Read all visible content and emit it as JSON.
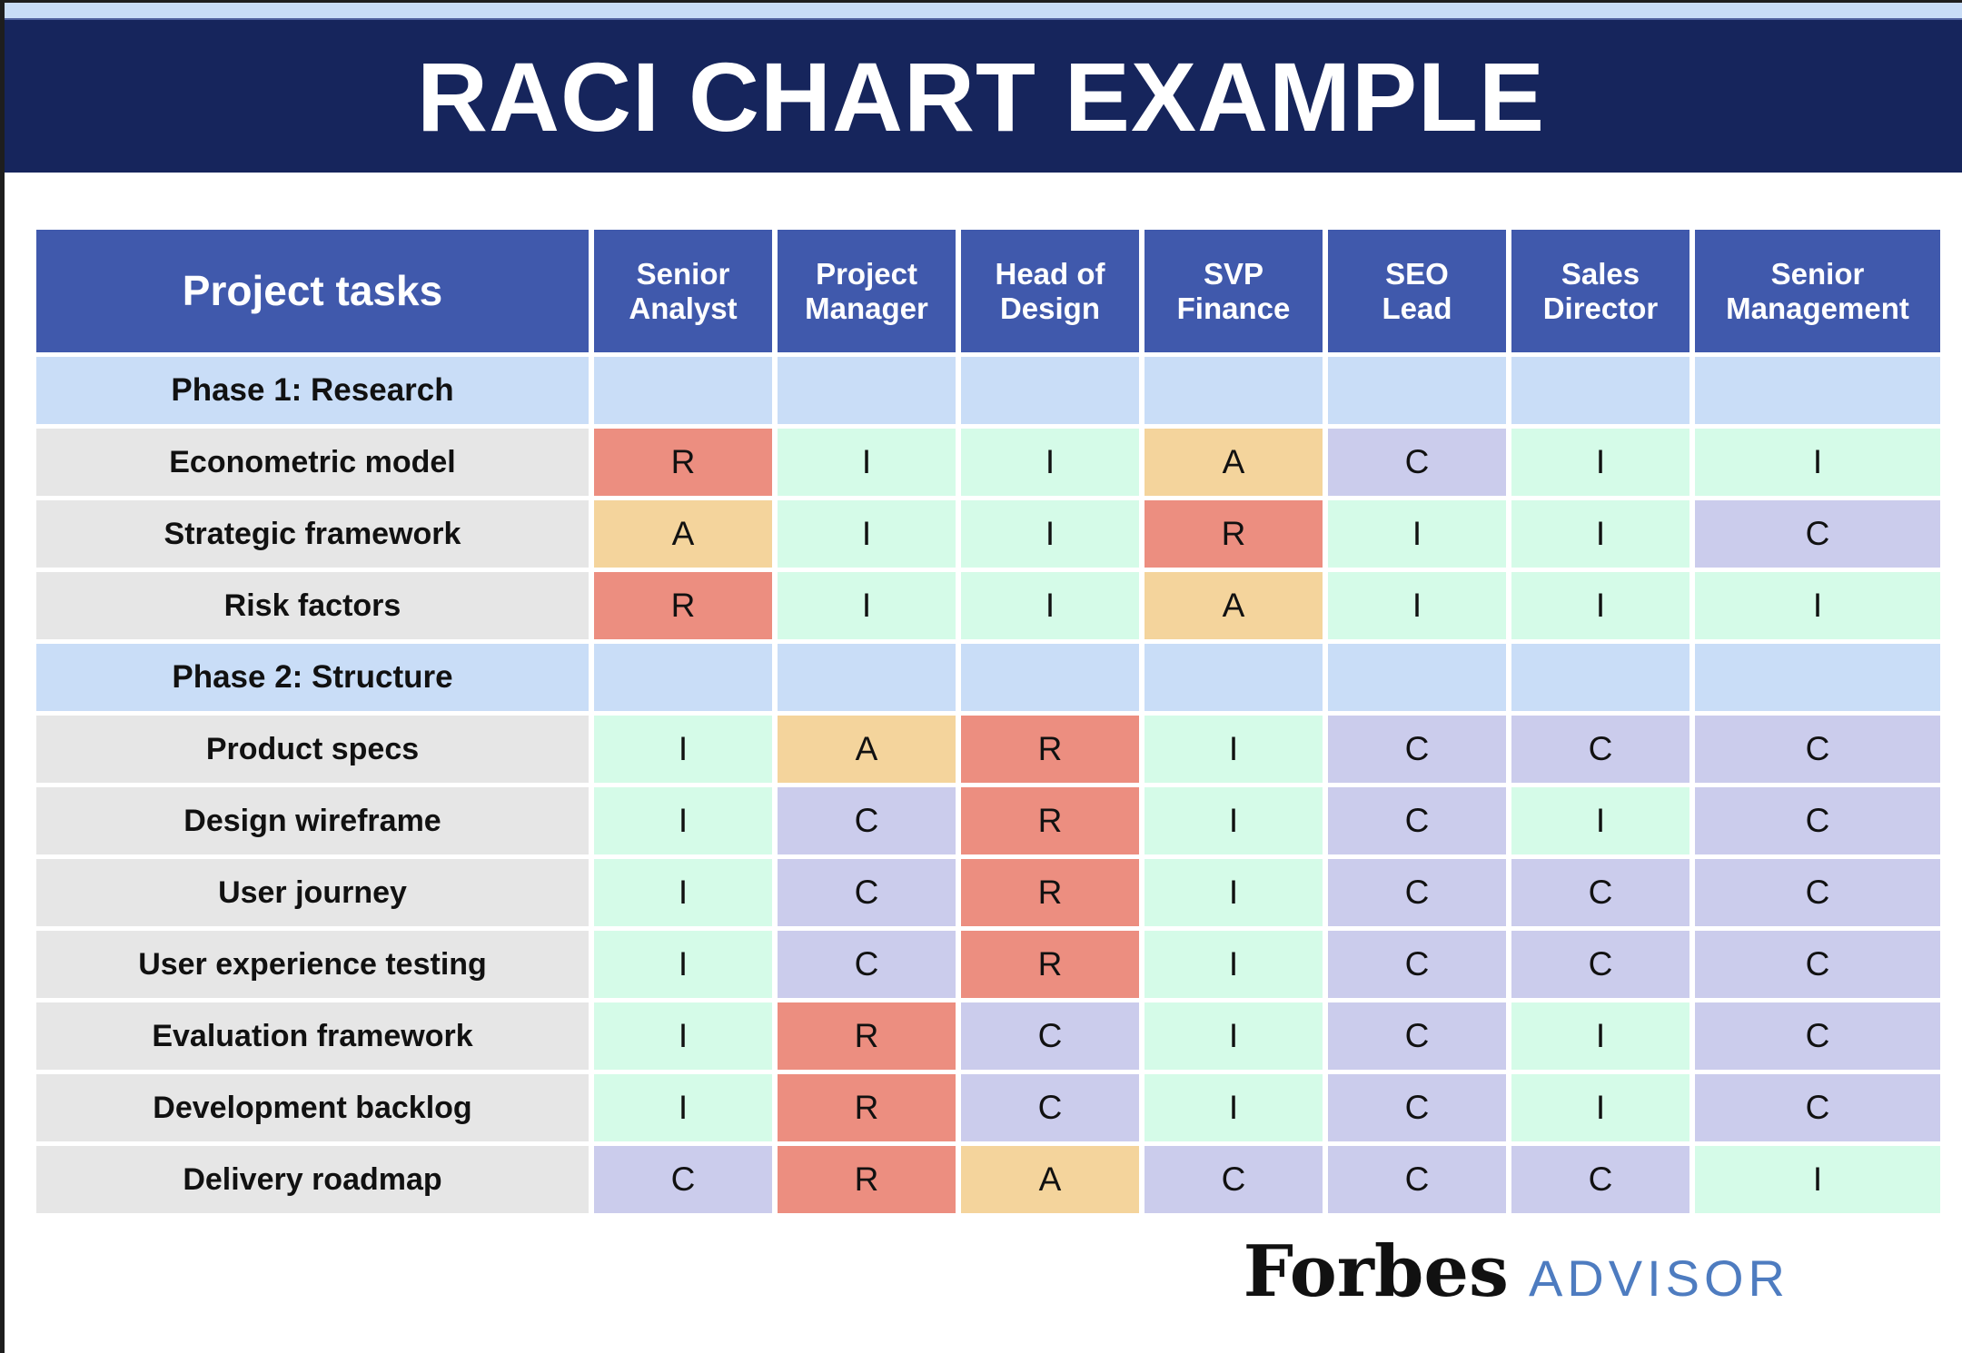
{
  "title": "RACI CHART EXAMPLE",
  "colors": {
    "banner_bg": "#16255c",
    "top_strip": "#c9ddf7",
    "header_bg": "#4059ac",
    "phase_row_bg": "#c9ddf7",
    "task_cell_bg": "#e6e6e6",
    "responsible": "#ec8e80",
    "accountable": "#f4d49c",
    "informed": "#d5fbe8",
    "consulted": "#cbccec",
    "advisor_text": "#4e7cc0"
  },
  "table": {
    "task_header": "Project tasks",
    "role_headers": [
      "Senior\nAnalyst",
      "Project\nManager",
      "Head of\nDesign",
      "SVP\nFinance",
      "SEO\nLead",
      "Sales\nDirector",
      "Senior\nManagement"
    ],
    "rows": [
      {
        "type": "phase",
        "label": "Phase 1: Research",
        "cells": [
          "",
          "",
          "",
          "",
          "",
          "",
          ""
        ]
      },
      {
        "type": "task",
        "label": "Econometric model",
        "cells": [
          "R",
          "I",
          "I",
          "A",
          "C",
          "I",
          "I"
        ]
      },
      {
        "type": "task",
        "label": "Strategic framework",
        "cells": [
          "A",
          "I",
          "I",
          "R",
          "I",
          "I",
          "C"
        ]
      },
      {
        "type": "task",
        "label": "Risk factors",
        "cells": [
          "R",
          "I",
          "I",
          "A",
          "I",
          "I",
          "I"
        ]
      },
      {
        "type": "phase",
        "label": "Phase 2: Structure",
        "cells": [
          "",
          "",
          "",
          "",
          "",
          "",
          ""
        ]
      },
      {
        "type": "task",
        "label": "Product specs",
        "cells": [
          "I",
          "A",
          "R",
          "I",
          "C",
          "C",
          "C"
        ]
      },
      {
        "type": "task",
        "label": "Design wireframe",
        "cells": [
          "I",
          "C",
          "R",
          "I",
          "C",
          "I",
          "C"
        ]
      },
      {
        "type": "task",
        "label": "User journey",
        "cells": [
          "I",
          "C",
          "R",
          "I",
          "C",
          "C",
          "C"
        ]
      },
      {
        "type": "task",
        "label": "User experience testing",
        "cells": [
          "I",
          "C",
          "R",
          "I",
          "C",
          "C",
          "C"
        ]
      },
      {
        "type": "task",
        "label": "Evaluation framework",
        "cells": [
          "I",
          "R",
          "C",
          "I",
          "C",
          "I",
          "C"
        ]
      },
      {
        "type": "task",
        "label": "Development backlog",
        "cells": [
          "I",
          "R",
          "C",
          "I",
          "C",
          "I",
          "C"
        ]
      },
      {
        "type": "task",
        "label": "Delivery roadmap",
        "cells": [
          "C",
          "R",
          "A",
          "C",
          "C",
          "C",
          "I"
        ]
      }
    ]
  },
  "chart_data": {
    "type": "table",
    "title": "RACI CHART EXAMPLE",
    "columns": [
      "Project tasks",
      "Senior Analyst",
      "Project Manager",
      "Head of Design",
      "SVP Finance",
      "SEO Lead",
      "Sales Director",
      "Senior Management"
    ],
    "rows": [
      [
        "Phase 1: Research",
        "",
        "",
        "",
        "",
        "",
        "",
        ""
      ],
      [
        "Econometric model",
        "R",
        "I",
        "I",
        "A",
        "C",
        "I",
        "I"
      ],
      [
        "Strategic framework",
        "A",
        "I",
        "I",
        "R",
        "I",
        "I",
        "C"
      ],
      [
        "Risk factors",
        "R",
        "I",
        "I",
        "A",
        "I",
        "I",
        "I"
      ],
      [
        "Phase 2: Structure",
        "",
        "",
        "",
        "",
        "",
        "",
        ""
      ],
      [
        "Product specs",
        "I",
        "A",
        "R",
        "I",
        "C",
        "C",
        "C"
      ],
      [
        "Design wireframe",
        "I",
        "C",
        "R",
        "I",
        "C",
        "I",
        "C"
      ],
      [
        "User journey",
        "I",
        "C",
        "R",
        "I",
        "C",
        "C",
        "C"
      ],
      [
        "User experience testing",
        "I",
        "C",
        "R",
        "I",
        "C",
        "C",
        "C"
      ],
      [
        "Evaluation framework",
        "I",
        "R",
        "C",
        "I",
        "C",
        "I",
        "C"
      ],
      [
        "Development backlog",
        "I",
        "R",
        "C",
        "I",
        "C",
        "I",
        "C"
      ],
      [
        "Delivery roadmap",
        "C",
        "R",
        "A",
        "C",
        "C",
        "C",
        "I"
      ]
    ],
    "cell_color_legend": {
      "R": "salmon-red",
      "A": "tan-orange",
      "I": "mint-green",
      "C": "lavender"
    }
  },
  "footer": {
    "brand": "Forbes",
    "suffix": "ADVISOR"
  }
}
